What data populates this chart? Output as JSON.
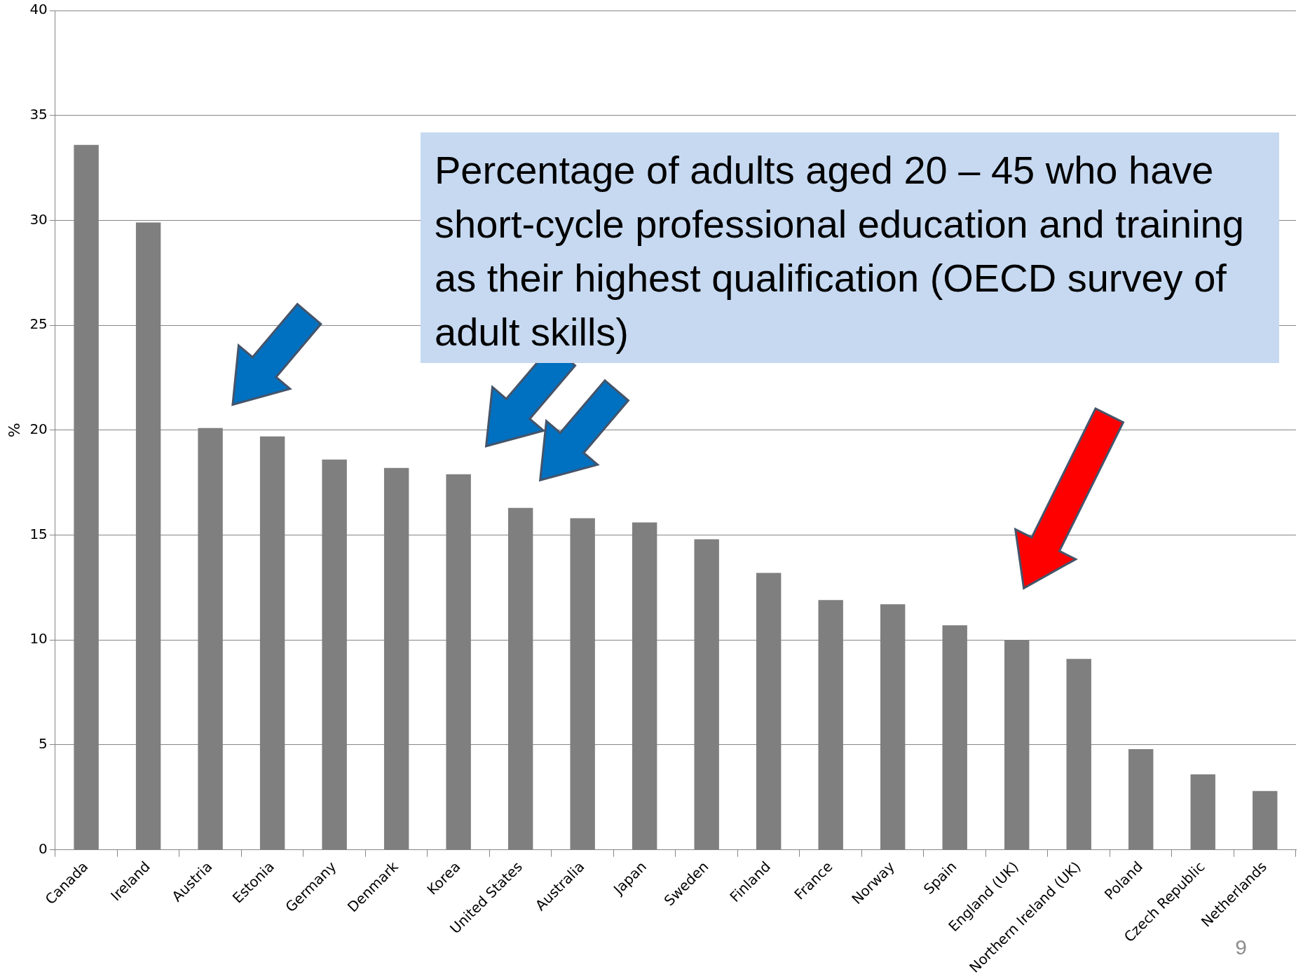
{
  "chart_data": {
    "type": "bar",
    "title": "Percentage of adults aged 20 – 45 who have short-cycle professional education and training as their highest qualification (OECD survey of adult skills)",
    "ylabel": "%",
    "categories": [
      "Canada",
      "Ireland",
      "Austria",
      "Estonia",
      "Germany",
      "Denmark",
      "Korea",
      "United States",
      "Australia",
      "Japan",
      "Sweden",
      "Finland",
      "France",
      "Norway",
      "Spain",
      "England (UK)",
      "Northern Ireland (UK)",
      "Poland",
      "Czech Republic",
      "Netherlands"
    ],
    "values": [
      33.6,
      29.9,
      20.1,
      19.7,
      18.6,
      18.2,
      17.9,
      16.3,
      15.8,
      15.6,
      14.8,
      13.2,
      11.9,
      11.7,
      10.7,
      10.0,
      9.1,
      4.8,
      3.6,
      2.8
    ],
    "color": "#7f7f7f",
    "ylim": [
      0,
      40
    ],
    "yticks": [
      0,
      5,
      10,
      15,
      20,
      25,
      30,
      35,
      40
    ],
    "grid": "y",
    "legend": false,
    "annotations": [
      "9"
    ]
  }
}
